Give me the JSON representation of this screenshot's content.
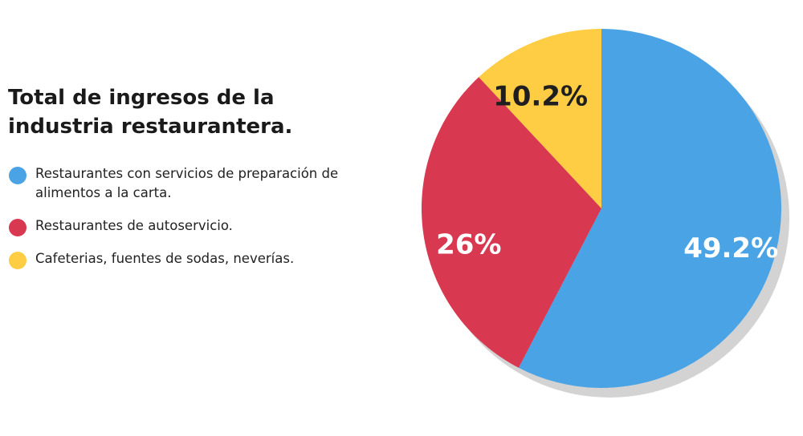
{
  "chart_data": {
    "type": "pie",
    "title_lines": [
      "Total de ingresos de la",
      "industria restaurantera."
    ],
    "slices": [
      {
        "label_lines": [
          "Restaurantes con servicios de preparación de",
          "alimentos a la carta."
        ],
        "value": 49.2,
        "display": "49.2%",
        "color": "#4aa3e5",
        "label_color": "#ffffff"
      },
      {
        "label_lines": [
          "Restaurantes de autoservicio."
        ],
        "value": 26,
        "display": "26%",
        "color": "#d93851",
        "label_color": "#ffffff"
      },
      {
        "label_lines": [
          "Cafeterias, fuentes de sodas, neverías."
        ],
        "value": 10.2,
        "display": "10.2%",
        "color": "#fecd44",
        "label_color": "#1f1f1f"
      }
    ],
    "start": "top",
    "direction": "clockwise",
    "legend_position": "left",
    "shadow_color": "#d3d3d3"
  }
}
